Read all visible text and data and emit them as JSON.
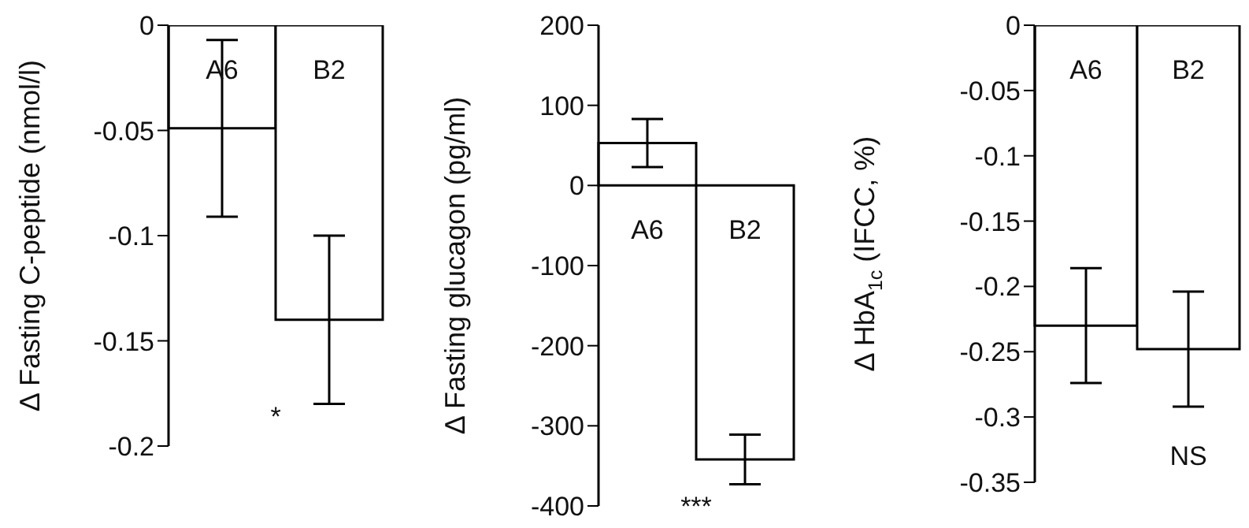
{
  "chart_data": [
    {
      "type": "bar",
      "categories": [
        "A6",
        "B2"
      ],
      "values": [
        -0.049,
        -0.14
      ],
      "errors": [
        0.042,
        0.04
      ],
      "color": "#ffffff",
      "ylabel": "Δ Fasting C-peptide (nmol/l)",
      "ylim": [
        -0.2,
        0
      ],
      "yticks": [
        0,
        -0.05,
        -0.1,
        -0.15,
        -0.2
      ],
      "annotations": [
        "*"
      ],
      "grid": false,
      "legend": false
    },
    {
      "type": "bar",
      "categories": [
        "A6",
        "B2"
      ],
      "values": [
        53,
        -342
      ],
      "errors": [
        30,
        31
      ],
      "color": "#ffffff",
      "ylabel": "Δ Fasting glucagon (pg/ml)",
      "ylim": [
        -400,
        200
      ],
      "yticks": [
        200,
        100,
        0,
        -100,
        -200,
        -300,
        -400
      ],
      "annotations": [
        "***"
      ],
      "grid": false,
      "legend": false
    },
    {
      "type": "bar",
      "categories": [
        "A6",
        "B2"
      ],
      "values": [
        -0.23,
        -0.248
      ],
      "errors": [
        0.044,
        0.044
      ],
      "color": "#ffffff",
      "ylabel": "Δ HbA$_{1c}$ (IFCC, %)",
      "ylim": [
        -0.35,
        0
      ],
      "yticks": [
        0,
        -0.05,
        -0.1,
        -0.15,
        -0.2,
        -0.25,
        -0.3,
        -0.35
      ],
      "annotations": [
        "NS"
      ],
      "grid": false,
      "legend": false
    }
  ]
}
